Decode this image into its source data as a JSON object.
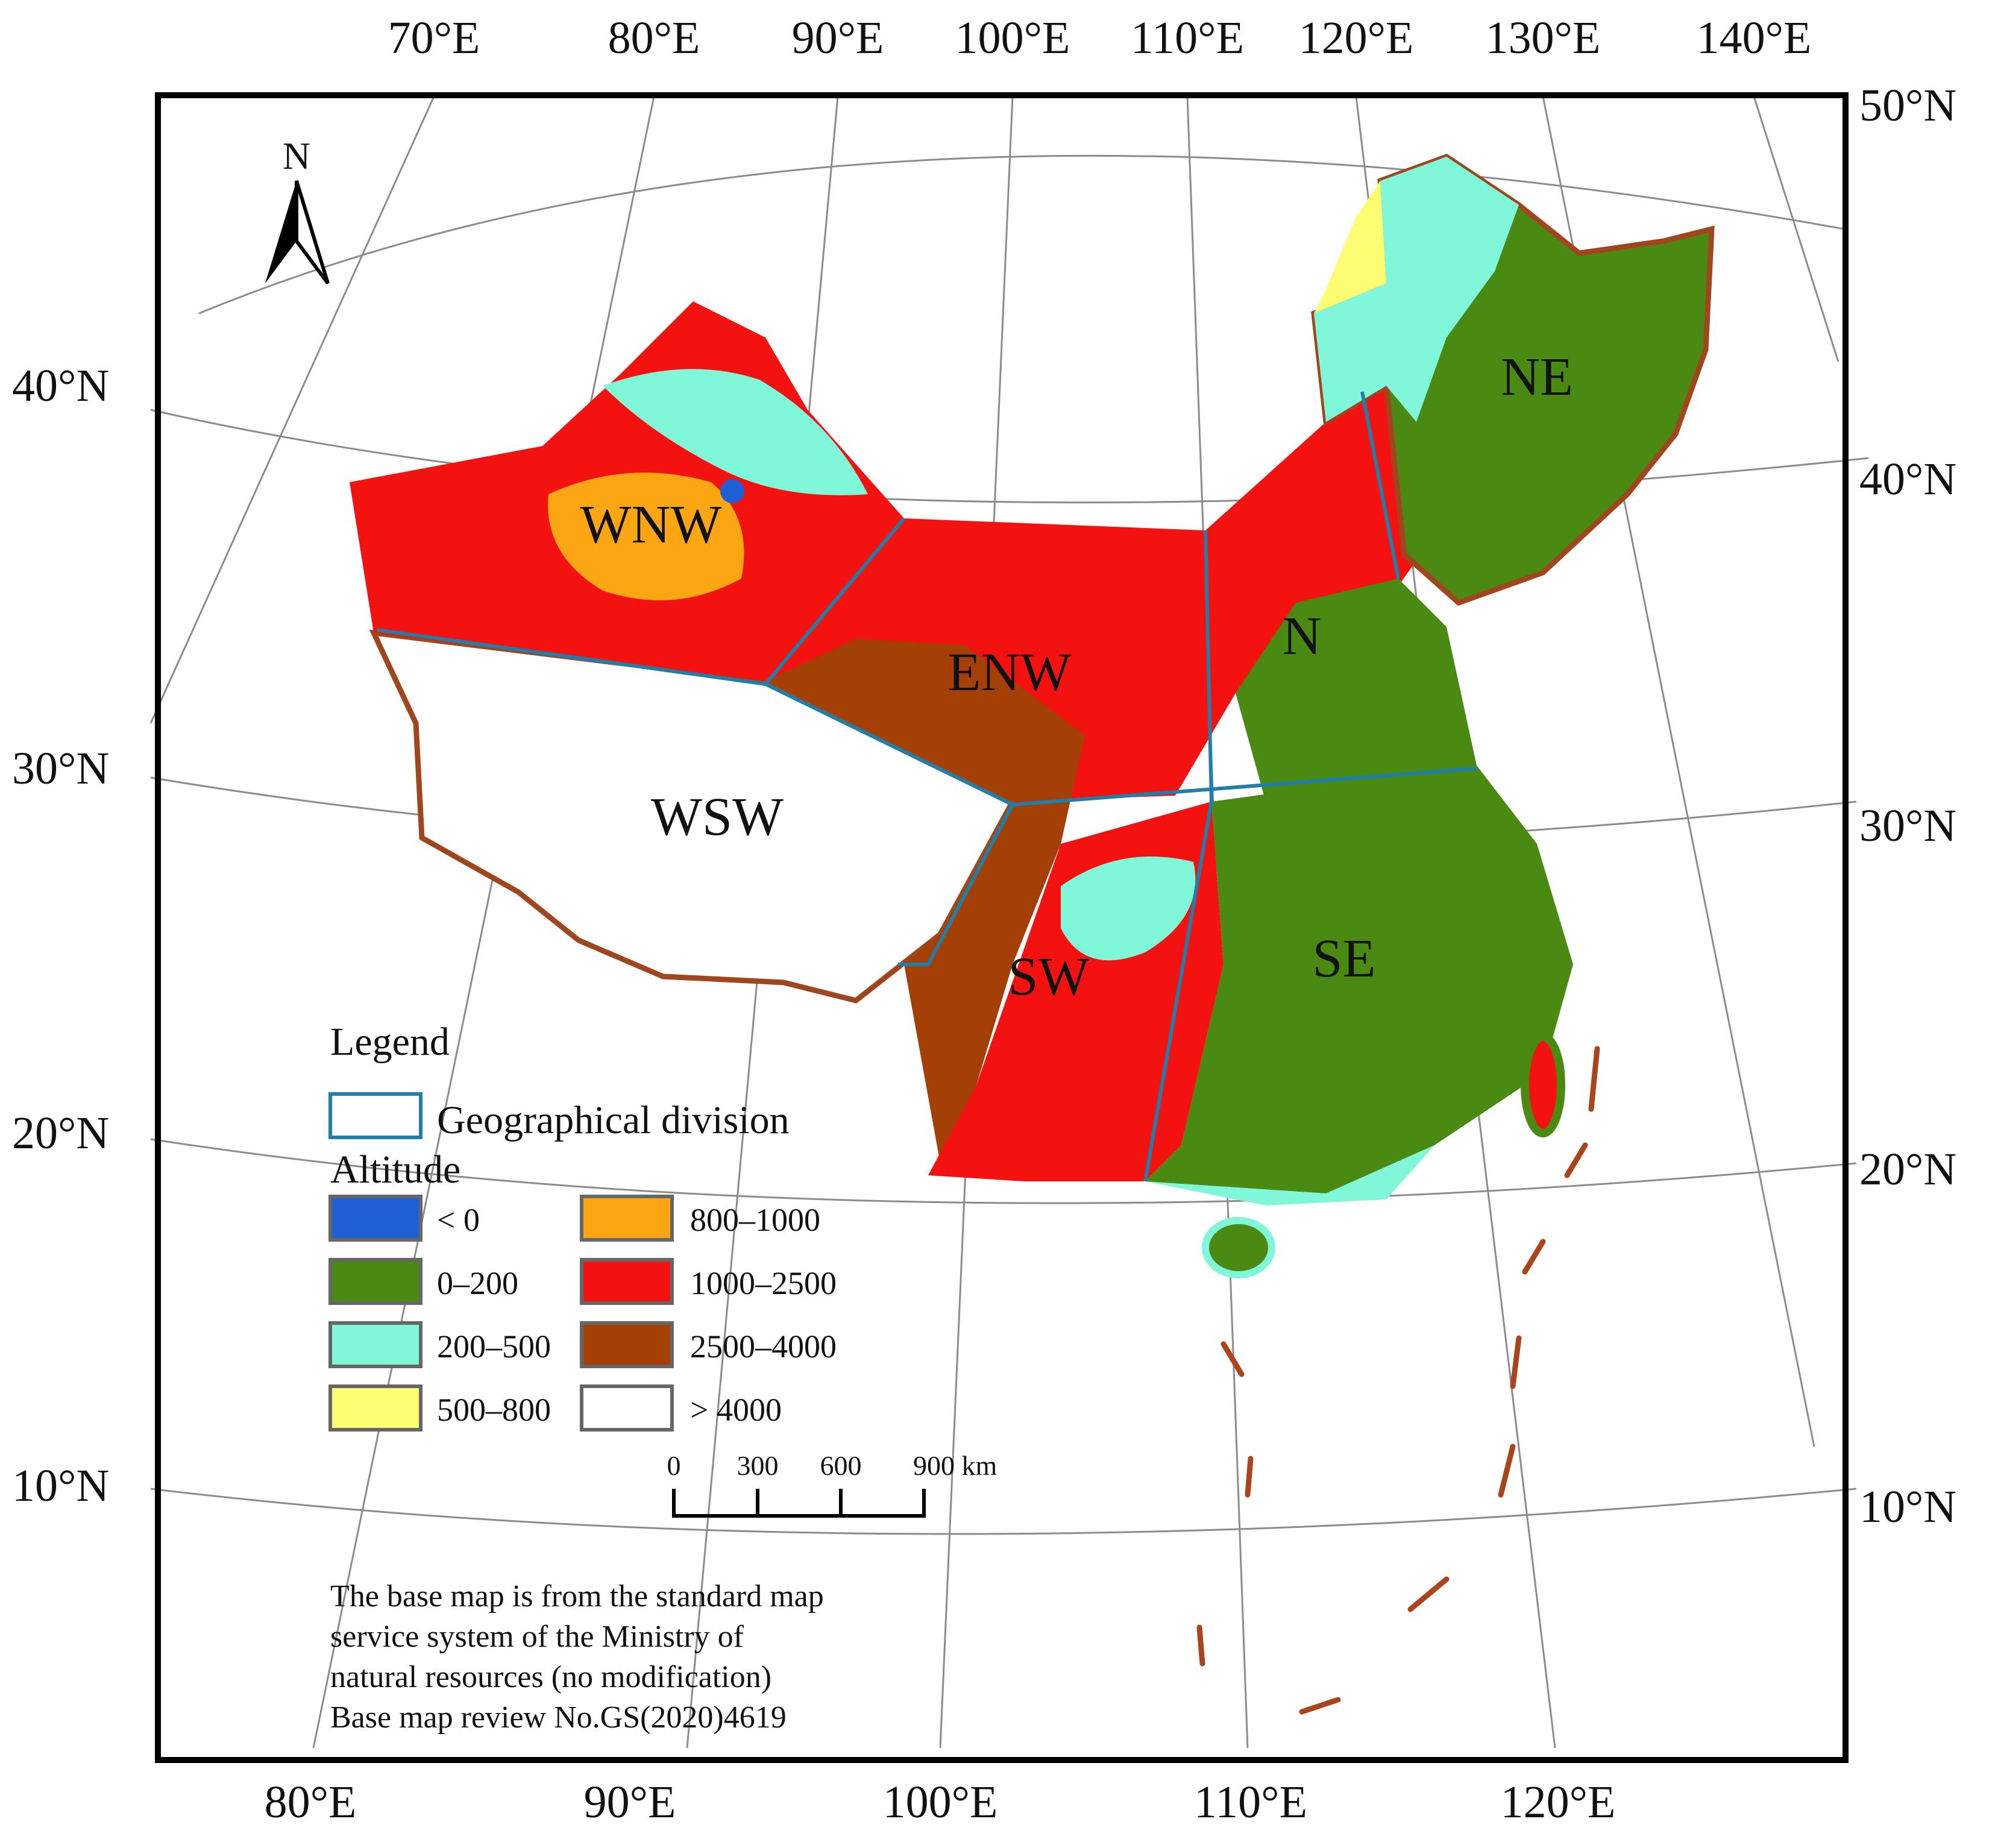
{
  "map": {
    "top_axis_labels": [
      "70°E",
      "80°E",
      "90°E",
      "100°E",
      "110°E",
      "120°E",
      "130°E",
      "140°E"
    ],
    "bottom_axis_labels": [
      "80°E",
      "90°E",
      "100°E",
      "110°E",
      "120°E"
    ],
    "left_axis_labels": [
      "40°N",
      "30°N",
      "20°N",
      "10°N"
    ],
    "right_axis_labels": [
      "50°N",
      "40°N",
      "30°N",
      "20°N",
      "10°N"
    ],
    "north_arrow_label": "N",
    "regions": [
      "WNW",
      "ENW",
      "N",
      "NE",
      "WSW",
      "SW",
      "SE"
    ]
  },
  "legend": {
    "title": "Legend",
    "division_label": "Geographical division",
    "altitude_title": "Altitude",
    "items": [
      {
        "label": "< 0",
        "color": "#1f5fd6"
      },
      {
        "label": "0–200",
        "color": "#4a8a12"
      },
      {
        "label": "200–500",
        "color": "#7ff7d8"
      },
      {
        "label": "500–800",
        "color": "#fdfd73"
      },
      {
        "label": "800–1000",
        "color": "#fba612"
      },
      {
        "label": "1000–2500",
        "color": "#f3120f"
      },
      {
        "label": "2500–4000",
        "color": "#a43f06"
      },
      {
        "label": "> 4000",
        "color": "#ffffff"
      }
    ]
  },
  "scale_bar": {
    "ticks": [
      "0",
      "300",
      "600",
      "900 km"
    ]
  },
  "note": {
    "lines": [
      "The base map is from the standard map",
      "service system of the Ministry of",
      "natural resources (no modification)",
      "Base map review No.GS(2020)4619"
    ]
  },
  "colors": {
    "division_line": "#1f7fa8",
    "coastline": "#a0461e",
    "dashed_line": "#a8451c",
    "graticule": "#8c8c8c"
  }
}
